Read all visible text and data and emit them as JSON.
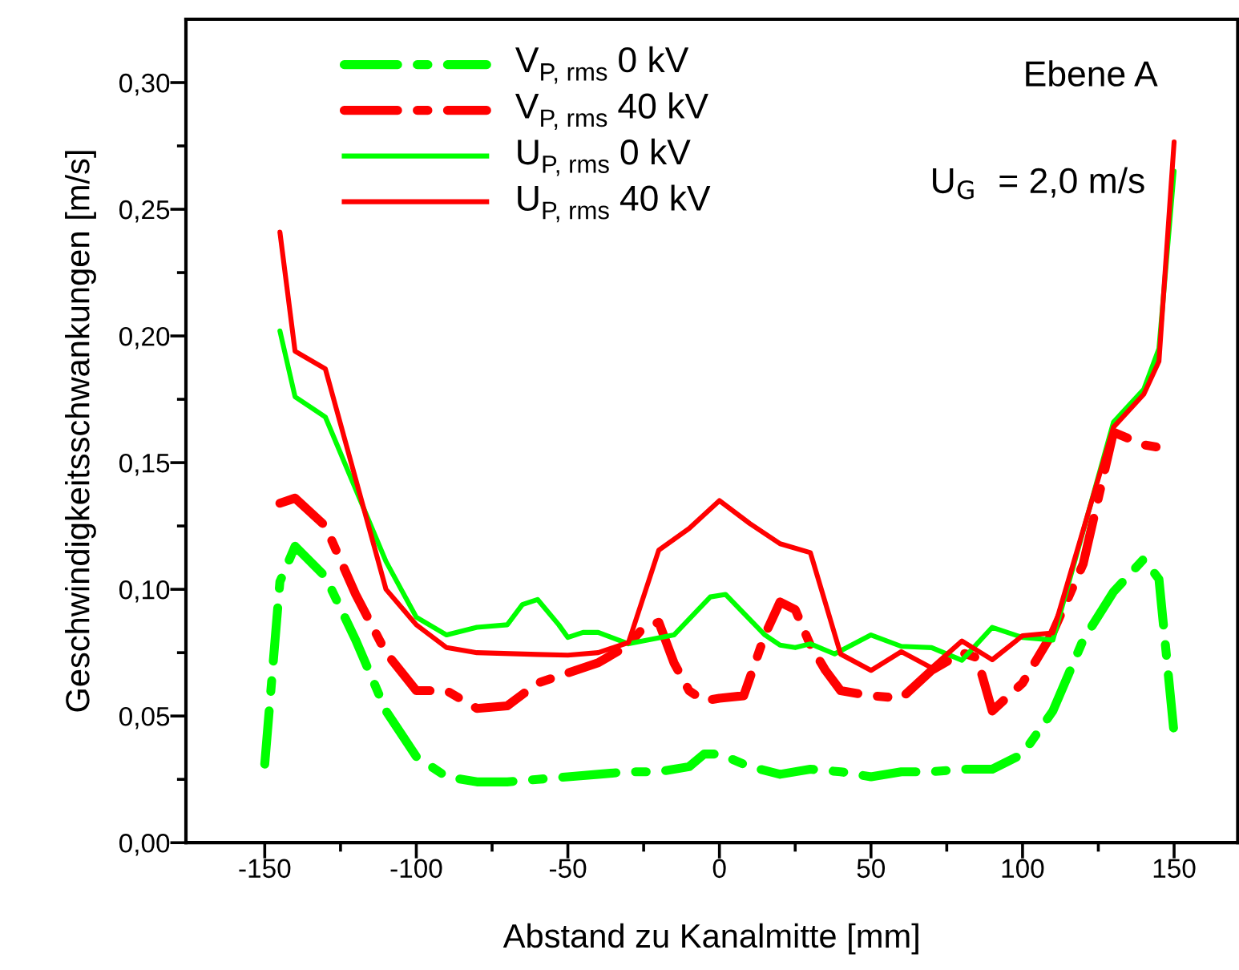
{
  "chart_data": {
    "type": "line",
    "xlabel": "Abstand zu Kanalmitte [mm]",
    "ylabel": "Geschwindigkeitsschwankungen [m/s]",
    "xlim": [
      -176,
      171
    ],
    "ylim": [
      0,
      0.325
    ],
    "xticks": [
      -150,
      {
        "value": -125,
        "label": null
      },
      -100,
      {
        "value": -75,
        "label": null
      },
      -50,
      {
        "value": -25,
        "label": null
      },
      0,
      {
        "value": 25,
        "label": null
      },
      50,
      {
        "value": 75,
        "label": null
      },
      100,
      {
        "value": 125,
        "label": null
      },
      150
    ],
    "yticks": [
      {
        "value": 0,
        "label": "0,00"
      },
      {
        "value": 0.025,
        "label": null
      },
      {
        "value": 0.05,
        "label": "0,05"
      },
      {
        "value": 0.075,
        "label": null
      },
      {
        "value": 0.1,
        "label": "0,10"
      },
      {
        "value": 0.125,
        "label": null
      },
      {
        "value": 0.15,
        "label": "0,15"
      },
      {
        "value": 0.175,
        "label": null
      },
      {
        "value": 0.2,
        "label": "0,20"
      },
      {
        "value": 0.225,
        "label": null
      },
      {
        "value": 0.25,
        "label": "0,25"
      },
      {
        "value": 0.275,
        "label": null
      },
      {
        "value": 0.3,
        "label": "0,30"
      }
    ],
    "grid": false,
    "legend": "top left",
    "marker": "none",
    "annotations": [
      "Ebene A",
      "U$_{G}$ = 2,0 m/s"
    ],
    "series": [
      {
        "name": "V$_{P, rms}$ 0 kV",
        "color": "#00ff00",
        "line_style": "dashdot",
        "x": [
          -150,
          -145,
          -140,
          -130,
          -120,
          -110,
          -100,
          -90,
          -80,
          -70,
          -60,
          -50,
          -40,
          -30,
          -20,
          -10,
          -5,
          0,
          10,
          20,
          30,
          40,
          50,
          60,
          70,
          80,
          90,
          100,
          110,
          120,
          130,
          140,
          145,
          150
        ],
        "values": [
          0.031,
          0.103,
          0.117,
          0.105,
          0.08,
          0.052,
          0.034,
          0.026,
          0.024,
          0.024,
          0.025,
          0.026,
          0.027,
          0.028,
          0.028,
          0.03,
          0.035,
          0.035,
          0.03,
          0.027,
          0.029,
          0.028,
          0.026,
          0.028,
          0.028,
          0.029,
          0.029,
          0.035,
          0.052,
          0.08,
          0.099,
          0.112,
          0.104,
          0.043
        ]
      },
      {
        "name": "V$_{P, rms}$ 40 kV",
        "color": "#ff0000",
        "line_style": "dashdot",
        "x": [
          -145,
          -140,
          -130,
          -120,
          -110,
          -100,
          -90,
          -80,
          -70,
          -60,
          -50,
          -40,
          -30,
          -25,
          -20,
          -15,
          -10,
          -5,
          0,
          8,
          15,
          20,
          25,
          30,
          35,
          40,
          50,
          60,
          70,
          80,
          85,
          90,
          100,
          110,
          120,
          130,
          140,
          145
        ],
        "values": [
          0.134,
          0.136,
          0.125,
          0.098,
          0.075,
          0.06,
          0.06,
          0.053,
          0.054,
          0.063,
          0.067,
          0.071,
          0.078,
          0.085,
          0.087,
          0.071,
          0.06,
          0.056,
          0.057,
          0.058,
          0.082,
          0.095,
          0.092,
          0.078,
          0.068,
          0.06,
          0.058,
          0.057,
          0.068,
          0.075,
          0.073,
          0.052,
          0.063,
          0.083,
          0.11,
          0.162,
          0.157,
          0.156
        ]
      },
      {
        "name": "U$_{P, rms}$ 0 kV",
        "color": "#00ff00",
        "line_style": "solid",
        "x": [
          -145,
          -140,
          -130,
          -110,
          -100,
          -90,
          -80,
          -70,
          -65,
          -60,
          -53,
          -50,
          -45,
          -40,
          -30,
          -15,
          -3,
          2,
          15,
          20,
          25,
          30,
          38,
          50,
          60,
          70,
          80,
          90,
          100,
          110,
          130,
          140,
          145,
          150
        ],
        "values": [
          0.202,
          0.176,
          0.168,
          0.111,
          0.089,
          0.082,
          0.085,
          0.086,
          0.094,
          0.096,
          0.086,
          0.081,
          0.083,
          0.083,
          0.0785,
          0.082,
          0.097,
          0.098,
          0.082,
          0.078,
          0.077,
          0.0785,
          0.0745,
          0.082,
          0.0775,
          0.077,
          0.072,
          0.085,
          0.081,
          0.08,
          0.166,
          0.179,
          0.195,
          0.265
        ]
      },
      {
        "name": "U$_{P, rms}$ 40 kV",
        "color": "#ff0000",
        "line_style": "solid",
        "x": [
          -145,
          -140,
          -130,
          -110,
          -100,
          -90,
          -80,
          -60,
          -50,
          -40,
          -30,
          -20,
          -10,
          0,
          10,
          20,
          30,
          40,
          50,
          60,
          70,
          80,
          90,
          100,
          110,
          130,
          140,
          145,
          150
        ],
        "values": [
          0.241,
          0.194,
          0.187,
          0.1,
          0.086,
          0.077,
          0.075,
          0.0743,
          0.074,
          0.075,
          0.079,
          0.1155,
          0.124,
          0.135,
          0.126,
          0.118,
          0.1145,
          0.0744,
          0.068,
          0.0754,
          0.069,
          0.0796,
          0.0722,
          0.0817,
          0.0828,
          0.164,
          0.177,
          0.19,
          0.2766
        ]
      }
    ]
  }
}
